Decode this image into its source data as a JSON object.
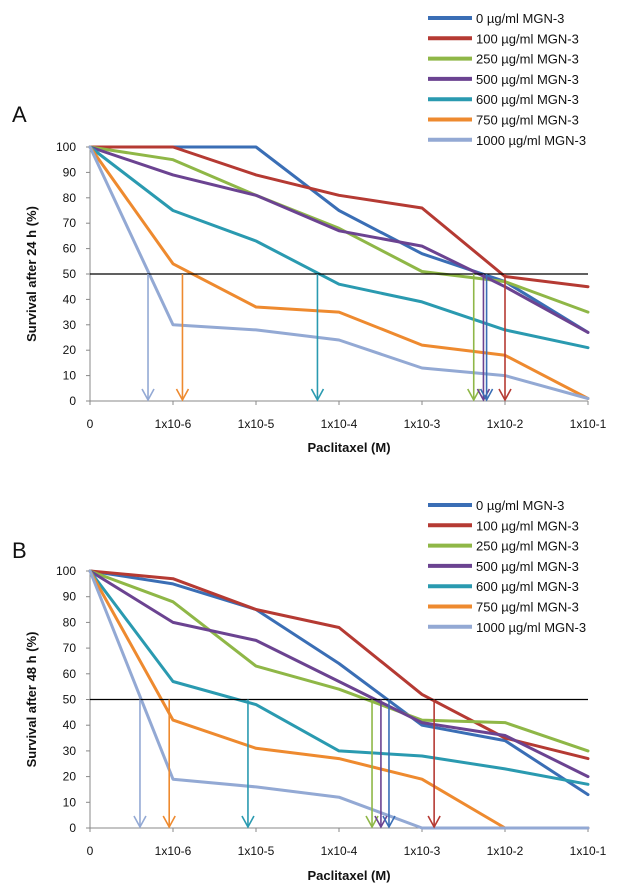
{
  "chart_data": [
    {
      "type": "line",
      "panel_label": "A",
      "ylabel": "Survival after 24 h (%)",
      "xlabel": "Paclitaxel (M)",
      "categories": [
        "0",
        "1x10-6",
        "1x10-5",
        "1x10-4",
        "1x10-3",
        "1x10-2",
        "1x10-1"
      ],
      "ylim": [
        0,
        100
      ],
      "yticks": [
        "0",
        "10",
        "20",
        "30",
        "40",
        "50",
        "60",
        "70",
        "80",
        "90",
        "100"
      ],
      "x_scale": "log10 concentration; 0 = control",
      "reference_line": 50,
      "legend_position": "top-right",
      "series": [
        {
          "name": "0 µg/ml MGN-3",
          "color": "#3a6eb5",
          "x": [
            0,
            1e-06,
            1e-05,
            0.0001,
            0.001,
            0.01,
            0.1
          ],
          "values": [
            100,
            100,
            100,
            75,
            58,
            47,
            27
          ]
        },
        {
          "name": "100  µg/ml MGN-3",
          "color": "#b53a33",
          "x": [
            0,
            1e-06,
            1e-05,
            0.0001,
            0.001,
            0.01,
            0.1
          ],
          "values": [
            100,
            100,
            89,
            81,
            76,
            49,
            45
          ]
        },
        {
          "name": "250  µg/ml MGN-3",
          "color": "#8fb747",
          "x": [
            0,
            1e-06,
            1e-05,
            0.0001,
            0.001,
            0.01,
            0.1
          ],
          "values": [
            100,
            95,
            81,
            68,
            51,
            47,
            35
          ]
        },
        {
          "name": "500  µg/ml MGN-3",
          "color": "#6b4391",
          "x": [
            0,
            1e-06,
            1e-05,
            0.0001,
            0.001,
            0.01,
            0.1
          ],
          "values": [
            100,
            89,
            81,
            67,
            61,
            45,
            27
          ]
        },
        {
          "name": "600  µg/ml MGN-3",
          "color": "#2a9ab0",
          "x": [
            0,
            1e-06,
            1e-05,
            0.0001,
            0.001,
            0.01,
            0.1
          ],
          "values": [
            100,
            75,
            63,
            46,
            39,
            28,
            21
          ]
        },
        {
          "name": "750  µg/ml MGN-3",
          "color": "#ee8a2f",
          "x": [
            0,
            1e-06,
            1e-05,
            0.0001,
            0.001,
            0.01,
            0.1
          ],
          "values": [
            100,
            54,
            37,
            35,
            22,
            18,
            1
          ]
        },
        {
          "name": "1000  µg/ml MGN-3",
          "color": "#93a9d4",
          "x": [
            0,
            1e-06,
            1e-05,
            0.0001,
            0.001,
            0.01,
            0.1
          ],
          "values": [
            100,
            30,
            28,
            24,
            13,
            10,
            1
          ]
        }
      ],
      "ic50_arrows": [
        {
          "color": "#93a9d4",
          "x": 5e-07
        },
        {
          "color": "#ee8a2f",
          "x": 1.3e-06
        },
        {
          "color": "#2a9ab0",
          "x": 5.5e-05
        },
        {
          "color": "#8fb747",
          "x": 0.0042
        },
        {
          "color": "#6b4391",
          "x": 0.0055
        },
        {
          "color": "#3a6eb5",
          "x": 0.006
        },
        {
          "color": "#b53a33",
          "x": 0.01
        }
      ]
    },
    {
      "type": "line",
      "panel_label": "B",
      "ylabel": "Survival after 48 h (%)",
      "xlabel": "Paclitaxel (M)",
      "categories": [
        "0",
        "1x10-6",
        "1x10-5",
        "1x10-4",
        "1x10-3",
        "1x10-2",
        "1x10-1"
      ],
      "ylim": [
        0,
        100
      ],
      "yticks": [
        "0",
        "10",
        "20",
        "30",
        "40",
        "50",
        "60",
        "70",
        "80",
        "90",
        "100"
      ],
      "x_scale": "log10 concentration; 0 = control",
      "reference_line": 50,
      "legend_position": "top-right",
      "series": [
        {
          "name": "0 µg/ml MGN-3",
          "color": "#3a6eb5",
          "x": [
            0,
            1e-06,
            1e-05,
            0.0001,
            0.001,
            0.01,
            0.1
          ],
          "values": [
            100,
            95,
            85,
            64,
            40,
            34,
            13
          ]
        },
        {
          "name": "100  µg/ml MGN-3",
          "color": "#b53a33",
          "x": [
            0,
            1e-06,
            1e-05,
            0.0001,
            0.001,
            0.01,
            0.1
          ],
          "values": [
            100,
            97,
            85,
            78,
            52,
            35,
            27
          ]
        },
        {
          "name": "250  µg/ml MGN-3",
          "color": "#8fb747",
          "x": [
            0,
            1e-06,
            1e-05,
            0.0001,
            0.001,
            0.01,
            0.1
          ],
          "values": [
            100,
            88,
            63,
            54,
            42,
            41,
            30
          ]
        },
        {
          "name": "500  µg/ml MGN-3",
          "color": "#6b4391",
          "x": [
            0,
            1e-06,
            1e-05,
            0.0001,
            0.001,
            0.01,
            0.1
          ],
          "values": [
            100,
            80,
            73,
            57,
            41,
            36,
            20
          ]
        },
        {
          "name": "600  µg/ml MGN-3",
          "color": "#2a9ab0",
          "x": [
            0,
            1e-06,
            1e-05,
            0.0001,
            0.001,
            0.01,
            0.1
          ],
          "values": [
            100,
            57,
            48,
            30,
            28,
            23,
            17
          ]
        },
        {
          "name": "750  µg/ml MGN-3",
          "color": "#ee8a2f",
          "x": [
            0,
            1e-06,
            1e-05,
            0.0001,
            0.001,
            0.01,
            0.1
          ],
          "values": [
            100,
            42,
            31,
            27,
            19,
            0,
            0
          ]
        },
        {
          "name": "1000  µg/ml MGN-3",
          "color": "#93a9d4",
          "x": [
            0,
            1e-06,
            1e-05,
            0.0001,
            0.001,
            0.01,
            0.1
          ],
          "values": [
            100,
            19,
            16,
            12,
            0,
            0,
            0
          ]
        }
      ],
      "ic50_arrows": [
        {
          "color": "#93a9d4",
          "x": 4e-07
        },
        {
          "color": "#ee8a2f",
          "x": 9e-07
        },
        {
          "color": "#2a9ab0",
          "x": 8e-06
        },
        {
          "color": "#8fb747",
          "x": 0.00025
        },
        {
          "color": "#6b4391",
          "x": 0.00032
        },
        {
          "color": "#3a6eb5",
          "x": 0.0004
        },
        {
          "color": "#b53a33",
          "x": 0.0014
        }
      ]
    }
  ]
}
